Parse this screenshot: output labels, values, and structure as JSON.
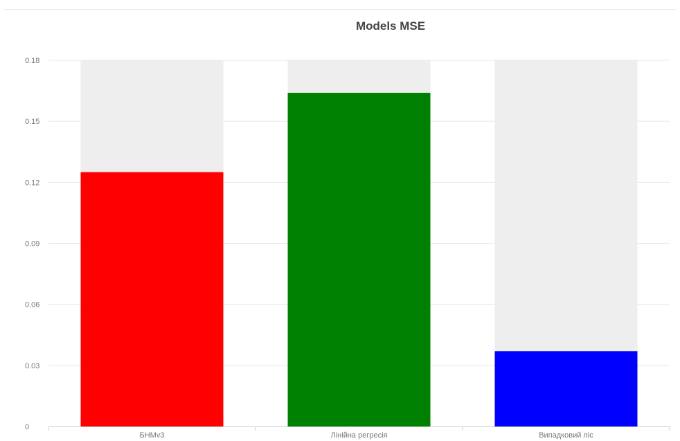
{
  "chart_data": {
    "type": "bar",
    "title": "Models MSE",
    "xlabel": "",
    "ylabel": "",
    "categories": [
      "БНМv3",
      "Лінійна регресія",
      "Випадковий ліс"
    ],
    "values": [
      0.125,
      0.164,
      0.037
    ],
    "colors": [
      "#ff0000",
      "#008000",
      "#0000ff"
    ],
    "background_bar_color": "#eeeeee",
    "ylim": [
      0,
      0.18
    ],
    "yticks": [
      0,
      0.03,
      0.06,
      0.09,
      0.12,
      0.15,
      0.18
    ],
    "ytick_labels": [
      "0",
      "0.03",
      "0.06",
      "0.09",
      "0.12",
      "0.15",
      "0.18"
    ],
    "grid": true,
    "legend": "none"
  }
}
